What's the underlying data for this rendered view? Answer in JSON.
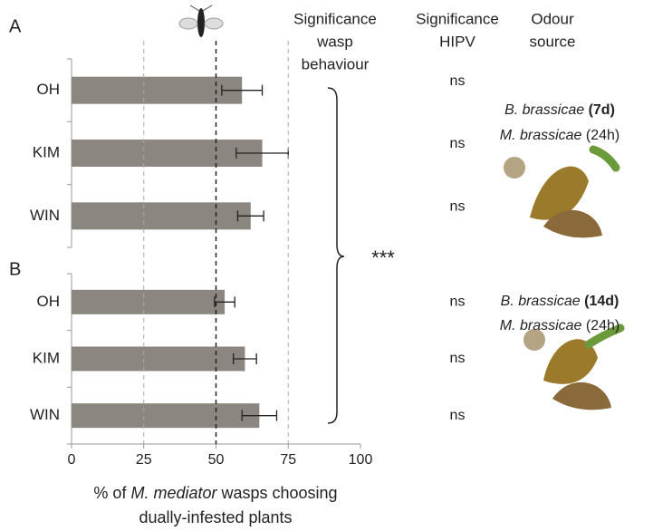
{
  "header": {
    "columns": [
      [
        "Significance",
        "wasp",
        "behaviour"
      ],
      [
        "Significance",
        "HIPV"
      ],
      [
        "Odour",
        "source"
      ]
    ],
    "significance": "***"
  },
  "x_label": {
    "line1": [
      "% of ",
      "M. mediator",
      " wasps choosing"
    ],
    "line2": "dually-infested plants"
  },
  "chart_data": [
    {
      "type": "bar",
      "label": "A",
      "categories": [
        "OH",
        "KIM",
        "WIN"
      ],
      "values": [
        59,
        66,
        62
      ],
      "errors": [
        7,
        9,
        4.5
      ],
      "color": "#8c8680",
      "xlim": [
        0,
        100
      ],
      "reference_line": 50,
      "hipv": [
        "ns",
        "ns",
        "ns"
      ],
      "odour_source": [
        [
          "B. brassicae",
          " (7d)"
        ],
        [
          "M. brassicae",
          " (24h)"
        ]
      ]
    },
    {
      "type": "bar",
      "label": "B",
      "categories": [
        "OH",
        "KIM",
        "WIN"
      ],
      "values": [
        53,
        60,
        65
      ],
      "errors": [
        3.5,
        4,
        6
      ],
      "color": "#8c8680",
      "xlim": [
        0,
        100
      ],
      "xticks": [
        0,
        25,
        50,
        75,
        100
      ],
      "grid": true,
      "reference_line": 50,
      "hipv": [
        "ns",
        "ns",
        "ns"
      ],
      "odour_source": [
        [
          "B. brassicae",
          " (14d)"
        ],
        [
          "M. brassicae",
          " (24h)"
        ]
      ]
    }
  ]
}
